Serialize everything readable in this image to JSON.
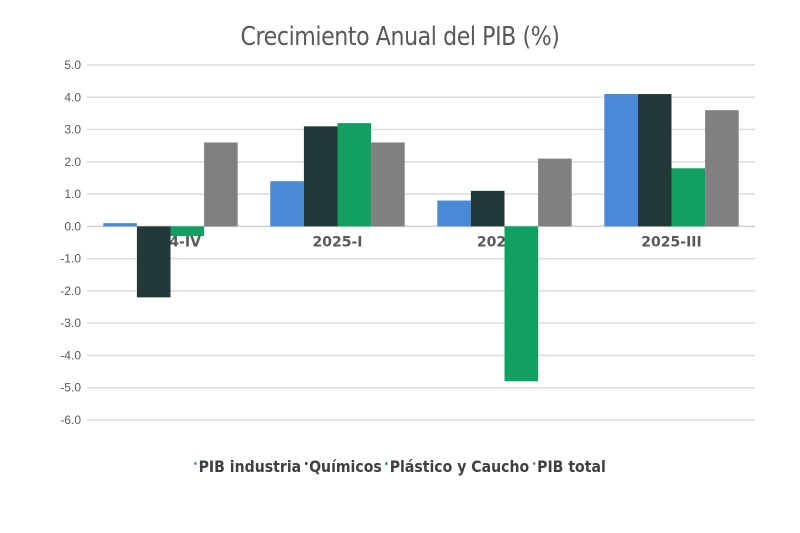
{
  "chart_data": {
    "type": "bar",
    "title": "Crecimiento Anual del PIB (%)",
    "xlabel": "",
    "ylabel": "",
    "ylim": [
      -6.0,
      5.0
    ],
    "yticks": [
      "5.0",
      "4.0",
      "3.0",
      "2.0",
      "1.0",
      "0.0",
      "-1.0",
      "-2.0",
      "-3.0",
      "-4.0",
      "-5.0",
      "-6.0"
    ],
    "ytick_values": [
      5,
      4,
      3,
      2,
      1,
      0,
      -1,
      -2,
      -3,
      -4,
      -5,
      -6
    ],
    "categories": [
      "2024-IV",
      "2025-I",
      "2025-II",
      "2025-III"
    ],
    "series": [
      {
        "name": "PIB industria",
        "color": "#4a89d6",
        "values": [
          0.1,
          1.4,
          0.8,
          4.1
        ]
      },
      {
        "name": "Químicos",
        "color": "#233838",
        "values": [
          -2.2,
          3.1,
          1.1,
          4.1
        ]
      },
      {
        "name": "Plástico y Caucho",
        "color": "#12a060",
        "values": [
          -0.3,
          3.2,
          -4.8,
          1.8
        ]
      },
      {
        "name": "PIB total",
        "color": "#808080",
        "values": [
          2.6,
          2.6,
          2.1,
          3.6
        ]
      }
    ],
    "grid": true,
    "legend_position": "bottom"
  }
}
